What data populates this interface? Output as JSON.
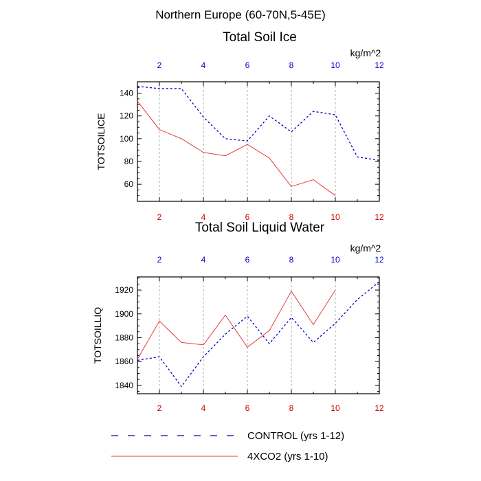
{
  "colors": {
    "control": "#0000cc",
    "co2": "#e63a3a",
    "top_ticks": "#0000cc",
    "bottom_ticks": "#cc0000",
    "grid": "#999999",
    "axis": "#000000"
  },
  "figure": {
    "title": "Northern Europe (60-70N,5-45E)",
    "units": "kg/m^2"
  },
  "legend": [
    {
      "key": "control",
      "label": "CONTROL (yrs 1-12)",
      "style": "dashed"
    },
    {
      "key": "co2",
      "label": "4XCO2 (yrs 1-10)",
      "style": "solid"
    }
  ],
  "chart_data": [
    {
      "type": "line",
      "title": "Total Soil Ice",
      "ylabel": "TOTSOILICE",
      "xlabel": "",
      "units_label": "kg/m^2",
      "xlim": [
        1,
        12
      ],
      "ylim": [
        45,
        150
      ],
      "xticks": [
        2,
        4,
        6,
        8,
        10,
        12
      ],
      "yticks": [
        60,
        80,
        100,
        120,
        140
      ],
      "y_minor_step": 5,
      "grid_x": [
        2,
        4,
        6,
        8,
        10
      ],
      "series": [
        {
          "name": "CONTROL (yrs 1-12)",
          "key": "control",
          "style": "dashed",
          "x": [
            1,
            2,
            3,
            4,
            5,
            6,
            7,
            8,
            9,
            10,
            11,
            12
          ],
          "y": [
            146,
            144,
            144,
            119,
            100,
            98,
            120,
            106,
            124,
            121,
            84,
            81
          ]
        },
        {
          "name": "4XCO2 (yrs 1-10)",
          "key": "co2",
          "style": "solid",
          "x": [
            1,
            2,
            3,
            4,
            5,
            6,
            7,
            8,
            9,
            10
          ],
          "y": [
            133,
            108,
            100,
            88,
            85,
            95,
            83,
            58,
            64,
            50
          ]
        }
      ]
    },
    {
      "type": "line",
      "title": "Total Soil Liquid Water",
      "ylabel": "TOTSOILLIQ",
      "xlabel": "",
      "units_label": "kg/m^2",
      "xlim": [
        1,
        12
      ],
      "ylim": [
        1833,
        1931
      ],
      "xticks": [
        2,
        4,
        6,
        8,
        10,
        12
      ],
      "yticks": [
        1840,
        1860,
        1880,
        1900,
        1920
      ],
      "y_minor_step": 5,
      "grid_x": [
        2,
        4,
        6,
        8,
        10
      ],
      "series": [
        {
          "name": "CONTROL (yrs 1-12)",
          "key": "control",
          "style": "dashed",
          "x": [
            1,
            2,
            3,
            4,
            5,
            6,
            7,
            8,
            9,
            10,
            11,
            12
          ],
          "y": [
            1861,
            1864,
            1839,
            1864,
            1883,
            1898,
            1875,
            1897,
            1876,
            1892,
            1912,
            1927
          ]
        },
        {
          "name": "4XCO2 (yrs 1-10)",
          "key": "co2",
          "style": "solid",
          "x": [
            1,
            2,
            3,
            4,
            5,
            6,
            7,
            8,
            9,
            10
          ],
          "y": [
            1862,
            1894,
            1876,
            1874,
            1899,
            1872,
            1886,
            1919,
            1891,
            1920
          ]
        }
      ]
    }
  ]
}
